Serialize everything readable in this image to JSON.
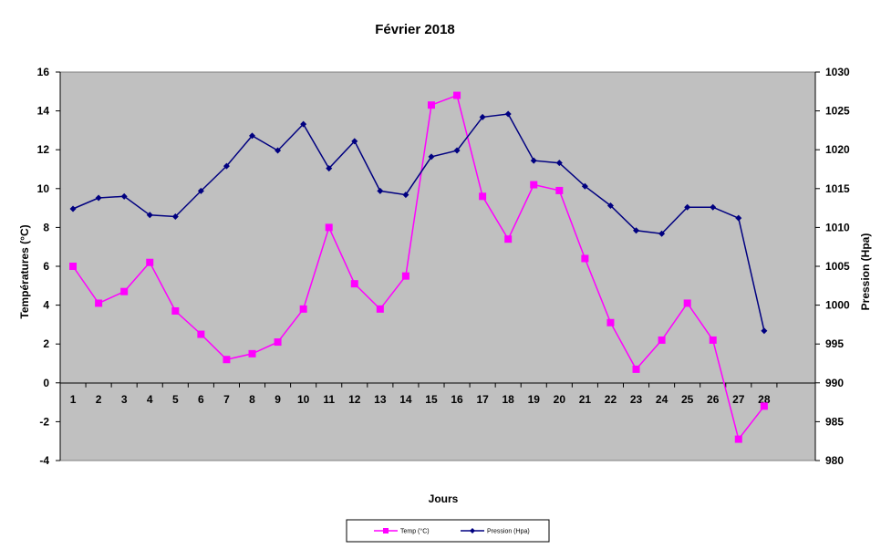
{
  "chart_data": {
    "type": "line",
    "title": "Février 2018",
    "xlabel": "Jours",
    "ylabel_left": "Températures (°C)",
    "ylabel_right": "Pression (Hpa)",
    "categories": [
      "1",
      "2",
      "3",
      "4",
      "5",
      "6",
      "7",
      "8",
      "9",
      "10",
      "11",
      "12",
      "13",
      "14",
      "15",
      "16",
      "17",
      "18",
      "19",
      "20",
      "21",
      "22",
      "23",
      "24",
      "25",
      "26",
      "27",
      "28"
    ],
    "y_left": {
      "min": -4,
      "max": 16,
      "step": 2,
      "ticks": [
        "-4",
        "-2",
        "0",
        "2",
        "4",
        "6",
        "8",
        "10",
        "12",
        "14",
        "16"
      ]
    },
    "y_right": {
      "min": 980,
      "max": 1030,
      "step": 5,
      "ticks": [
        "980",
        "985",
        "990",
        "995",
        "1000",
        "1005",
        "1010",
        "1015",
        "1020",
        "1025",
        "1030"
      ]
    },
    "series": [
      {
        "name": "Temp (°C)",
        "axis": "left",
        "color": "#ff00ff",
        "marker": "square",
        "values": [
          6.0,
          4.1,
          4.7,
          6.2,
          3.7,
          2.5,
          1.2,
          1.5,
          2.1,
          3.8,
          8.0,
          5.1,
          3.8,
          5.5,
          14.3,
          14.8,
          9.6,
          7.4,
          10.2,
          9.9,
          6.4,
          3.1,
          0.7,
          2.2,
          4.1,
          2.2,
          -2.9,
          -1.2
        ]
      },
      {
        "name": "Pression (Hpa)",
        "axis": "right",
        "color": "#000080",
        "marker": "diamond",
        "values": [
          1012.4,
          1013.8,
          1014.0,
          1011.6,
          1011.4,
          1014.7,
          1017.9,
          1021.8,
          1019.9,
          1023.3,
          1017.6,
          1021.1,
          1014.7,
          1014.2,
          1019.1,
          1019.9,
          1024.2,
          1024.6,
          1018.6,
          1018.3,
          1015.3,
          1012.8,
          1009.6,
          1009.2,
          1012.6,
          1012.6,
          1011.2,
          996.7
        ]
      }
    ],
    "grid": false,
    "legend_position": "bottom",
    "plot_background": "#c0c0c0"
  }
}
